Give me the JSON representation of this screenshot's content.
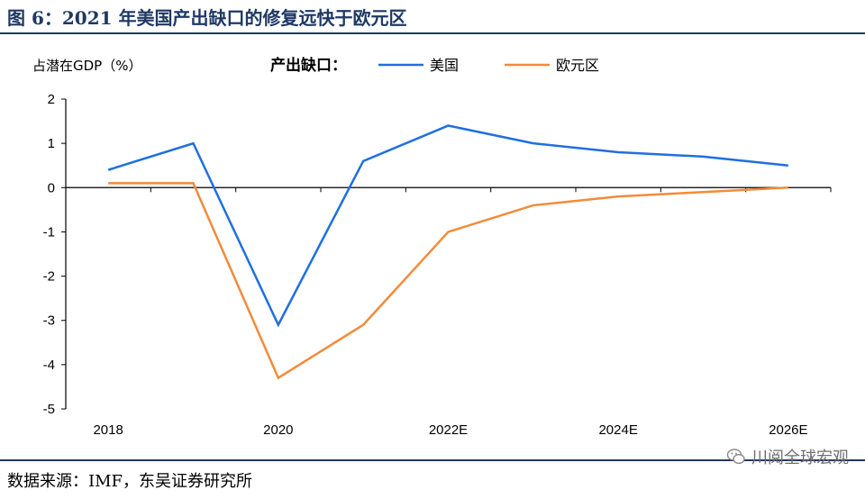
{
  "header": {
    "title": "图 6：2021 年美国产出缺口的修复远快于欧元区"
  },
  "footer": {
    "source": "数据来源：IMF，东吴证券研究所",
    "watermark": "川阅全球宏观"
  },
  "colors": {
    "usa": "#1f6fe0",
    "eurozone": "#f28b3a",
    "frame": "#1f3864"
  },
  "chart_data": {
    "type": "line",
    "ylabel": "占潜在GDP（%）",
    "legend_title": "产出缺口：",
    "legend_position": "top",
    "x": [
      "2018",
      "2019",
      "2020",
      "2021",
      "2022E",
      "2023E",
      "2024E",
      "2025E",
      "2026E"
    ],
    "xticklabels": [
      "2018",
      "",
      "2020",
      "",
      "2022E",
      "",
      "2024E",
      "",
      "2026E"
    ],
    "ylim": [
      -5,
      2
    ],
    "yticks": [
      2,
      1,
      0,
      -1,
      -2,
      -3,
      -4,
      -5
    ],
    "grid": false,
    "series": [
      {
        "name": "美国",
        "values": [
          0.4,
          1.0,
          -3.1,
          0.6,
          1.4,
          1.0,
          0.8,
          0.7,
          0.5
        ]
      },
      {
        "name": "欧元区",
        "values": [
          0.1,
          0.1,
          -4.3,
          -3.1,
          -1.0,
          -0.4,
          -0.2,
          -0.1,
          0.0
        ]
      }
    ]
  }
}
